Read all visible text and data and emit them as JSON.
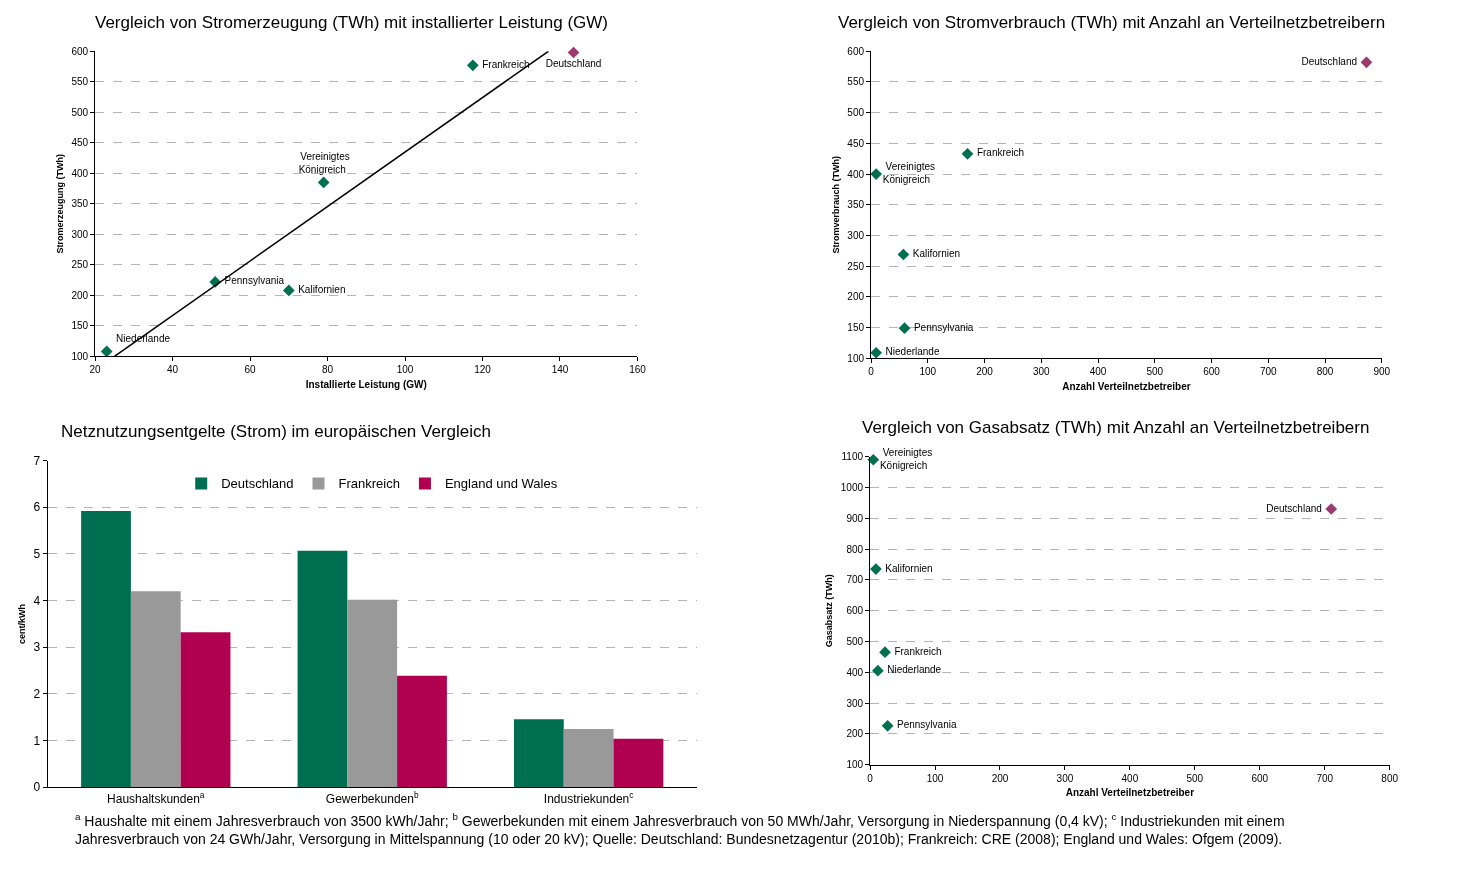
{
  "chart_data": [
    {
      "type": "scatter",
      "title": "Vergleich von Stromerzeugung (TWh) mit installierter Leistung (GW)",
      "xlabel": "Installierte Leistung (GW)",
      "ylabel": "Stromerzeugung (TWh)",
      "xlim": [
        20,
        160
      ],
      "xticks": [
        20,
        40,
        60,
        80,
        100,
        120,
        140,
        160
      ],
      "ylim": [
        100,
        600
      ],
      "yticks": [
        100,
        150,
        200,
        250,
        300,
        350,
        400,
        450,
        500,
        550,
        600
      ],
      "grid": "y",
      "legend": false,
      "marker": "diamond",
      "series": [
        {
          "name": "Niederlande",
          "color": "#00704f",
          "x": [
            23
          ],
          "values": [
            108
          ]
        },
        {
          "name": "Pennsylvania",
          "color": "#00704f",
          "x": [
            51
          ],
          "values": [
            222
          ]
        },
        {
          "name": "Kalifornien",
          "color": "#00704f",
          "x": [
            70
          ],
          "values": [
            208
          ]
        },
        {
          "name": "Vereinigtes\nKönigreich",
          "color": "#00704f",
          "x": [
            79
          ],
          "values": [
            385
          ]
        },
        {
          "name": "Frankreich",
          "color": "#00704f",
          "x": [
            117.5
          ],
          "values": [
            577
          ]
        },
        {
          "name": "Deutschland",
          "color": "#9b3a6e",
          "x": [
            143.5
          ],
          "values": [
            598
          ]
        },
        {
          "type": "line",
          "color": "#000000",
          "x": [
            25,
            137
          ],
          "values": [
            100,
            600
          ],
          "line_style": "solid",
          "marker": "none"
        }
      ]
    },
    {
      "type": "scatter",
      "title": "Vergleich von Stromverbrauch (TWh) mit Anzahl an Verteilnetzbetreibern",
      "xlabel": "Anzahl Verteilnetzbetreiber",
      "ylabel": "Stromverbrauch (TWh)",
      "xlim": [
        0,
        900
      ],
      "xticks": [
        0,
        100,
        200,
        300,
        400,
        500,
        600,
        700,
        800,
        900
      ],
      "ylim": [
        100,
        600
      ],
      "yticks": [
        100,
        150,
        200,
        250,
        300,
        350,
        400,
        450,
        500,
        550,
        600
      ],
      "grid": "y",
      "legend": false,
      "marker": "diamond",
      "series": [
        {
          "name": "Deutschland",
          "color": "#9b3a6e",
          "x": [
            873
          ],
          "values": [
            582
          ]
        },
        {
          "name": "Frankreich",
          "color": "#00704f",
          "x": [
            170
          ],
          "values": [
            433
          ]
        },
        {
          "name": "Vereinigtes\nKönigreich",
          "color": "#00704f",
          "x": [
            9
          ],
          "values": [
            400
          ]
        },
        {
          "name": "Kalifornien",
          "color": "#00704f",
          "x": [
            57
          ],
          "values": [
            269
          ]
        },
        {
          "name": "Pennsylvania",
          "color": "#00704f",
          "x": [
            59
          ],
          "values": [
            149
          ]
        },
        {
          "name": "Niederlande",
          "color": "#00704f",
          "x": [
            9
          ],
          "values": [
            109
          ]
        }
      ]
    },
    {
      "type": "bar",
      "title": "Netznutzungsentgelte (Strom) im europäischen Vergleich",
      "ylabel": "cent/kWh",
      "categories": [
        "Haushaltskunden$^{a}$",
        "Gewerbekunden$^{b}$",
        "Industriekunden$^{c}$"
      ],
      "ylim": [
        0,
        7
      ],
      "yticks": [
        0,
        1,
        2,
        3,
        4,
        5,
        6,
        7
      ],
      "grid": "y",
      "legend": "top",
      "series": [
        {
          "name": "Deutschland",
          "color": "#006f51",
          "values": [
            5.92,
            5.07,
            1.46
          ]
        },
        {
          "name": "Frankreich",
          "color": "#999999",
          "values": [
            4.2,
            4.02,
            1.25
          ]
        },
        {
          "name": "England und Wales",
          "color": "#b0004f",
          "values": [
            3.32,
            2.39,
            1.04
          ]
        }
      ],
      "annotations": [
        "$^{a}$ Haushalte mit einem Jahresverbrauch von 3500 kWh/Jahr; $^{b}$ Gewerbekunden mit einem Jahresverbrauch von 50 MWh/Jahr, Versorgung in Niederspannung (0,4 kV); $^{c}$ Industriekunden mit einem Jahresverbrauch von 24 GWh/Jahr, Versorgung in Mittelspannung (10 oder 20 kV); Quelle: Deutschland: Bundesnetzagentur (2010b); Frankreich: CRE (2008); England und Wales: Ofgem (2009)."
      ]
    },
    {
      "type": "scatter",
      "title": "Vergleich von Gasabsatz (TWh) mit Anzahl an Verteilnetzbetreibern",
      "xlabel": "Anzahl Verteilnetzbetreiber",
      "ylabel": "Gasabsatz (TWh)",
      "xlim": [
        0,
        800
      ],
      "xticks": [
        0,
        100,
        200,
        300,
        400,
        500,
        600,
        700,
        800
      ],
      "ylim": [
        100,
        1100
      ],
      "yticks": [
        100,
        200,
        300,
        400,
        500,
        600,
        700,
        800,
        900,
        1000,
        1100
      ],
      "grid": "y",
      "legend": false,
      "marker": "diamond",
      "series": [
        {
          "name": "Vereinigtes\nKönigreich",
          "color": "#00704f",
          "x": [
            5
          ],
          "values": [
            1090
          ]
        },
        {
          "name": "Deutschland",
          "color": "#9b3a6e",
          "x": [
            710
          ],
          "values": [
            930
          ]
        },
        {
          "name": "Kalifornien",
          "color": "#00704f",
          "x": [
            9
          ],
          "values": [
            735
          ]
        },
        {
          "name": "Frankreich",
          "color": "#00704f",
          "x": [
            23
          ],
          "values": [
            465
          ]
        },
        {
          "name": "Niederlande",
          "color": "#00704f",
          "x": [
            12
          ],
          "values": [
            405
          ]
        },
        {
          "name": "Pennsylvania",
          "color": "#00704f",
          "x": [
            27
          ],
          "values": [
            226
          ]
        }
      ]
    }
  ]
}
